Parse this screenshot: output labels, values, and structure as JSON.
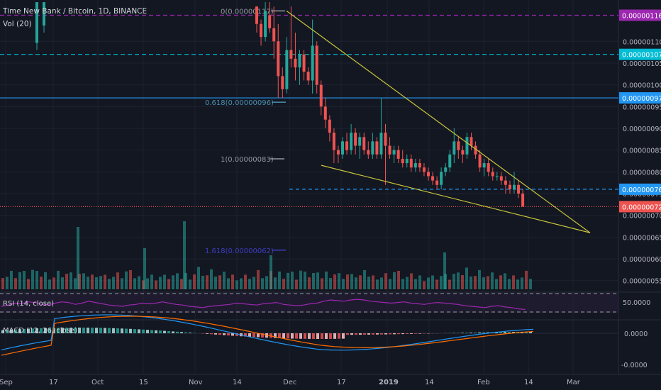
{
  "header": {
    "title": "Time New Bank / Bitcoin, 1D, BINANCE",
    "volume_label": "Vol (20)"
  },
  "colors": {
    "bg": "#131722",
    "up": "#26a69a",
    "down": "#ef5350",
    "trend": "#c9c53a",
    "purple": "#9c27b0",
    "cyan": "#00bcd4",
    "blue": "#2196f3",
    "red": "#ef5350",
    "fib_mid": "#4a8fb0",
    "fib_low": "#3d3dbf",
    "rsi": "#9c27b0",
    "macd": "#2196f3",
    "signal": "#ff6d00"
  },
  "chart_data": {
    "type": "candlestick",
    "title": "Time New Bank / Bitcoin, 1D, BINANCE",
    "y_axis": {
      "ticks": [
        "0.00000110",
        "0.00000105",
        "0.00000100",
        "0.00000095",
        "0.00000090",
        "0.00000085",
        "0.00000080",
        "0.00000075",
        "0.00000070",
        "0.00000065",
        "0.00000060",
        "0.00000055"
      ],
      "range": [
        5.3e-07,
        1.195e-06
      ]
    },
    "x_axis": {
      "ticks": [
        "Sep",
        "17",
        "Oct",
        "15",
        "Nov",
        "14",
        "Dec",
        "17",
        "2019",
        "14",
        "Feb",
        "14",
        "Mar"
      ]
    },
    "price_labels": [
      {
        "text": "0.00000116",
        "value": 1.16e-06,
        "color": "#9c27b0"
      },
      {
        "text": "0.00000107",
        "value": 1.07e-06,
        "color": "#00bcd4"
      },
      {
        "text": "0.00000097",
        "value": 9.7e-07,
        "color": "#2196f3"
      },
      {
        "text": "0.00000076",
        "value": 7.6e-07,
        "color": "#2196f3"
      },
      {
        "text": "0.00000072",
        "value": 7.2e-07,
        "color": "#ef5350"
      }
    ],
    "fib_levels": [
      {
        "text": "0(0.00000117)",
        "value": 1.17e-06
      },
      {
        "text": "0.618(0.00000096)",
        "value": 9.6e-07
      },
      {
        "text": "1(0.00000083)",
        "value": 8.3e-07
      },
      {
        "text": "1.618(0.00000062)",
        "value": 6.2e-07
      }
    ],
    "falling_wedge": {
      "upper": [
        [
          "Nov 30",
          1.17e-06
        ],
        [
          "Mar 7",
          6.6e-07
        ]
      ],
      "lower": [
        [
          "Dec 10",
          8.1e-07
        ],
        [
          "Mar 7",
          6.6e-07
        ]
      ]
    },
    "candles": [
      [
        1.18e-06,
        1.18e-06,
        1.12e-06,
        1.14e-06
      ],
      [
        1.14e-06,
        1.15e-06,
        1.09e-06,
        1.11e-06
      ],
      [
        1.11e-06,
        1.19e-06,
        1.1e-06,
        1.17e-06
      ],
      [
        1.16e-06,
        1.19e-06,
        1.12e-06,
        1.13e-06
      ],
      [
        1.13e-06,
        1.18e-06,
        1.06e-06,
        1.1e-06
      ],
      [
        1.1e-06,
        1.14e-06,
        9.7e-07,
        1.02e-06
      ],
      [
        1.02e-06,
        1.04e-06,
        9.7e-07,
        9.9e-07
      ],
      [
        9.9e-07,
        1.11e-06,
        9.8e-07,
        1.08e-06
      ],
      [
        1.08e-06,
        1.18e-06,
        1.04e-06,
        1.06e-06
      ],
      [
        1.06e-06,
        1.12e-06,
        1.01e-06,
        1.04e-06
      ],
      [
        1.04e-06,
        1.08e-06,
        1e-06,
        1.07e-06
      ],
      [
        1.07e-06,
        1.08e-06,
        1.01e-06,
        1.03e-06
      ],
      [
        1.03e-06,
        1.04e-06,
        1e-06,
        1.01e-06
      ],
      [
        1.01e-06,
        1.15e-06,
        9.8e-07,
        1.09e-06
      ],
      [
        1.09e-06,
        1.1e-06,
        9.8e-07,
        1e-06
      ],
      [
        1e-06,
        1.01e-06,
        9.3e-07,
        9.5e-07
      ],
      [
        9.5e-07,
        9.7e-07,
        9e-07,
        9.2e-07
      ],
      [
        9.2e-07,
        9.3e-07,
        8.7e-07,
        8.9e-07
      ],
      [
        8.9e-07,
        9e-07,
        8.2e-07,
        8.5e-07
      ],
      [
        8.5e-07,
        8.6e-07,
        8.2e-07,
        8.4e-07
      ],
      [
        8.4e-07,
        8.8e-07,
        8.3e-07,
        8.7e-07
      ],
      [
        8.7e-07,
        8.9e-07,
        8.4e-07,
        8.5e-07
      ],
      [
        8.5e-07,
        9.1e-07,
        8.4e-07,
        8.9e-07
      ],
      [
        8.9e-07,
        9e-07,
        8.4e-07,
        8.6e-07
      ],
      [
        8.6e-07,
        8.9e-07,
        8.3e-07,
        8.8e-07
      ],
      [
        8.8e-07,
        8.9e-07,
        8.4e-07,
        8.5e-07
      ],
      [
        8.5e-07,
        8.7e-07,
        8.3e-07,
        8.4e-07
      ],
      [
        8.4e-07,
        8.9e-07,
        8.3e-07,
        8.7e-07
      ],
      [
        8.7e-07,
        8.8e-07,
        8.3e-07,
        8.4e-07
      ],
      [
        8.4e-07,
        9.7e-07,
        8.3e-07,
        8.9e-07
      ],
      [
        8.9e-07,
        9.1e-07,
        7.7e-07,
        8.6e-07
      ],
      [
        8.6e-07,
        8.8e-07,
        8.3e-07,
        8.4e-07
      ],
      [
        8.4e-07,
        8.6e-07,
        8.2e-07,
        8.5e-07
      ],
      [
        8.5e-07,
        8.6e-07,
        8.2e-07,
        8.3e-07
      ],
      [
        8.3e-07,
        8.5e-07,
        8.1e-07,
        8.2e-07
      ],
      [
        8.2e-07,
        8.4e-07,
        8.1e-07,
        8.3e-07
      ],
      [
        8.3e-07,
        8.4e-07,
        8e-07,
        8.1e-07
      ],
      [
        8.1e-07,
        8.3e-07,
        8e-07,
        8.2e-07
      ],
      [
        8.2e-07,
        8.3e-07,
        8e-07,
        8.1e-07
      ],
      [
        8.1e-07,
        8.2e-07,
        7.9e-07,
        8e-07
      ],
      [
        8e-07,
        8.1e-07,
        7.8e-07,
        7.9e-07
      ],
      [
        7.9e-07,
        8e-07,
        7.7e-07,
        7.8e-07
      ],
      [
        7.8e-07,
        7.9e-07,
        7.6e-07,
        7.7e-07
      ],
      [
        7.7e-07,
        8.1e-07,
        7.6e-07,
        8e-07
      ],
      [
        8e-07,
        8.2e-07,
        7.9e-07,
        8.1e-07
      ],
      [
        8.1e-07,
        8.5e-07,
        8e-07,
        8.4e-07
      ],
      [
        8.4e-07,
        9e-07,
        8.2e-07,
        8.7e-07
      ],
      [
        8.7e-07,
        8.8e-07,
        8.3e-07,
        8.5e-07
      ],
      [
        8.5e-07,
        8.6e-07,
        8.2e-07,
        8.4e-07
      ],
      [
        8.4e-07,
        8.9e-07,
        8.3e-07,
        8.8e-07
      ],
      [
        8.8e-07,
        8.9e-07,
        8.5e-07,
        8.6e-07
      ],
      [
        8.6e-07,
        8.7e-07,
        8.3e-07,
        8.4e-07
      ],
      [
        8.4e-07,
        8.5e-07,
        8e-07,
        8.1e-07
      ],
      [
        8.1e-07,
        8.3e-07,
        7.9e-07,
        8.2e-07
      ],
      [
        8.2e-07,
        8.3e-07,
        7.9e-07,
        8e-07
      ],
      [
        8e-07,
        8.1e-07,
        7.8e-07,
        7.9e-07
      ],
      [
        7.9e-07,
        8e-07,
        7.8e-07,
        7.9e-07
      ],
      [
        7.9e-07,
        8e-07,
        7.7e-07,
        7.8e-07
      ],
      [
        7.8e-07,
        7.9e-07,
        7.5e-07,
        7.7e-07
      ],
      [
        7.7e-07,
        7.8e-07,
        7.5e-07,
        7.6e-07
      ],
      [
        7.6e-07,
        8e-07,
        7.5e-07,
        7.7e-07
      ],
      [
        7.7e-07,
        7.8e-07,
        7.4e-07,
        7.5e-07
      ],
      [
        7.5e-07,
        7.6e-07,
        7.2e-07,
        7.2e-07
      ]
    ],
    "volume": [
      0.45,
      0.35,
      0.55,
      0.4,
      0.6,
      0.5,
      0.3,
      0.7,
      0.45,
      0.4,
      0.5,
      0.35,
      0.3,
      0.55,
      0.45,
      0.5,
      0.4,
      0.35,
      0.45,
      0.3,
      0.4,
      0.35,
      0.5,
      0.4,
      0.3,
      0.35,
      0.3,
      0.4,
      0.35,
      0.6,
      0.5,
      0.3,
      0.25,
      0.3,
      0.25,
      0.3,
      0.25,
      0.3,
      0.25,
      0.3,
      0.35,
      0.3,
      0.25,
      0.45,
      0.35,
      0.5,
      0.8,
      0.55,
      0.4,
      0.6,
      0.45,
      0.35,
      0.4,
      0.3,
      0.35,
      0.3,
      0.25,
      0.3,
      0.35,
      0.3,
      0.55,
      0.35,
      0.3
    ],
    "rsi": {
      "label": "RSI (14, close)",
      "tick": "50.0000",
      "values": [
        50,
        52,
        55,
        54,
        57,
        56,
        53,
        52,
        55,
        57,
        56,
        53,
        55,
        58,
        56,
        54,
        52,
        51,
        50,
        52,
        53,
        55,
        54,
        55,
        57,
        55,
        53,
        52,
        50,
        49,
        48,
        50,
        51,
        52,
        53,
        55,
        54,
        53,
        52,
        54,
        55,
        56,
        53,
        52,
        51,
        52,
        54,
        55,
        58,
        60,
        59,
        58,
        60,
        61,
        60,
        58,
        57,
        56,
        55,
        56,
        57,
        55,
        54,
        53,
        55,
        56,
        55,
        54,
        53,
        51,
        50,
        49,
        48,
        50,
        51,
        49,
        48,
        46,
        45
      ]
    },
    "macd": {
      "label": "MACD (12, 26, close)",
      "ticks": [
        "0.0000",
        "-0.0000"
      ]
    }
  }
}
